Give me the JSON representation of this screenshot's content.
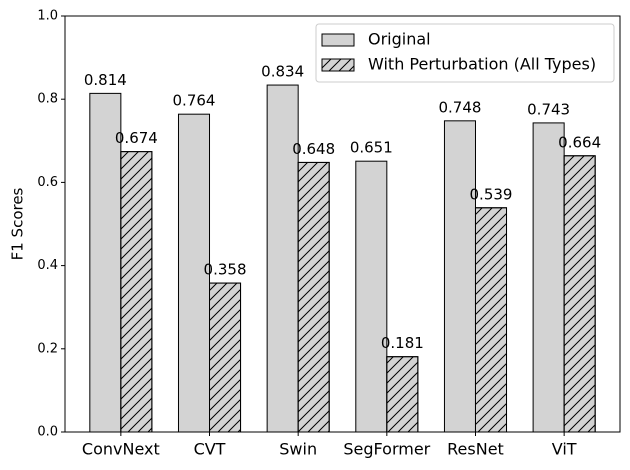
{
  "chart_data": {
    "type": "grouped_bar",
    "ylabel": "F1 Scores",
    "categories": [
      "ConvNext",
      "CVT",
      "Swin",
      "SegFormer",
      "ResNet",
      "ViT"
    ],
    "series": [
      {
        "name": "Original",
        "color": "#d3d3d3",
        "hatch": false,
        "values": [
          0.814,
          0.764,
          0.834,
          0.651,
          0.748,
          0.743
        ]
      },
      {
        "name": "With Perturbation (All Types)",
        "color": "#d3d3d3",
        "hatch": true,
        "values": [
          0.674,
          0.358,
          0.648,
          0.181,
          0.539,
          0.664
        ]
      }
    ],
    "ylim": [
      0,
      1
    ],
    "yticks": [
      {
        "value": 0,
        "label": "0.0"
      },
      0.2,
      0.4,
      0.6,
      0.8,
      {
        "value": 1,
        "label": "1.0"
      }
    ],
    "legend": "upper right"
  }
}
